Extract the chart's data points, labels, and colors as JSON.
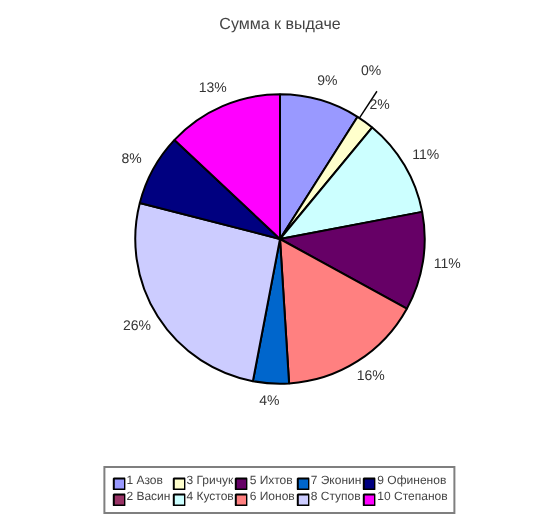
{
  "chart_data": {
    "type": "pie",
    "title": "Сумма к выдаче",
    "categories": [
      "1 Азов",
      "2 Васин",
      "3 Гричук",
      "4 Кустов",
      "5 Ихтов",
      "6 Ионов",
      "7 Эконин",
      "8 Ступов",
      "9 Офиненов",
      "10 Степанов"
    ],
    "values": [
      9,
      0,
      2,
      11,
      11,
      16,
      4,
      26,
      8,
      13
    ],
    "colors": [
      "#9999ff",
      "#993366",
      "#ffffcc",
      "#ccffff",
      "#660066",
      "#ff8080",
      "#0066cc",
      "#ccccff",
      "#000080",
      "#ff00ff"
    ],
    "value_labels": [
      "9%",
      "0%",
      "2%",
      "11%",
      "11%",
      "16%",
      "4%",
      "26%",
      "8%",
      "13%"
    ],
    "legend": "bottom"
  }
}
